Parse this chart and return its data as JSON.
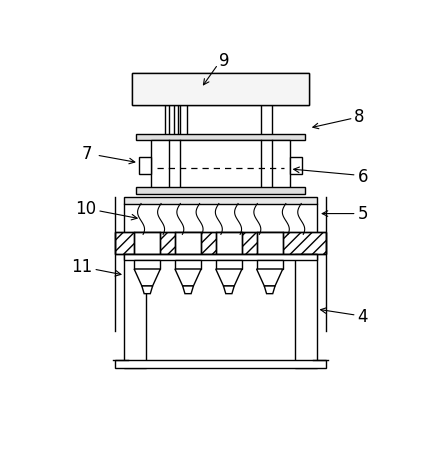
{
  "bg_color": "#ffffff",
  "line_color": "#000000",
  "label_fontsize": 12,
  "figsize": [
    4.3,
    4.58
  ],
  "dpi": 100
}
